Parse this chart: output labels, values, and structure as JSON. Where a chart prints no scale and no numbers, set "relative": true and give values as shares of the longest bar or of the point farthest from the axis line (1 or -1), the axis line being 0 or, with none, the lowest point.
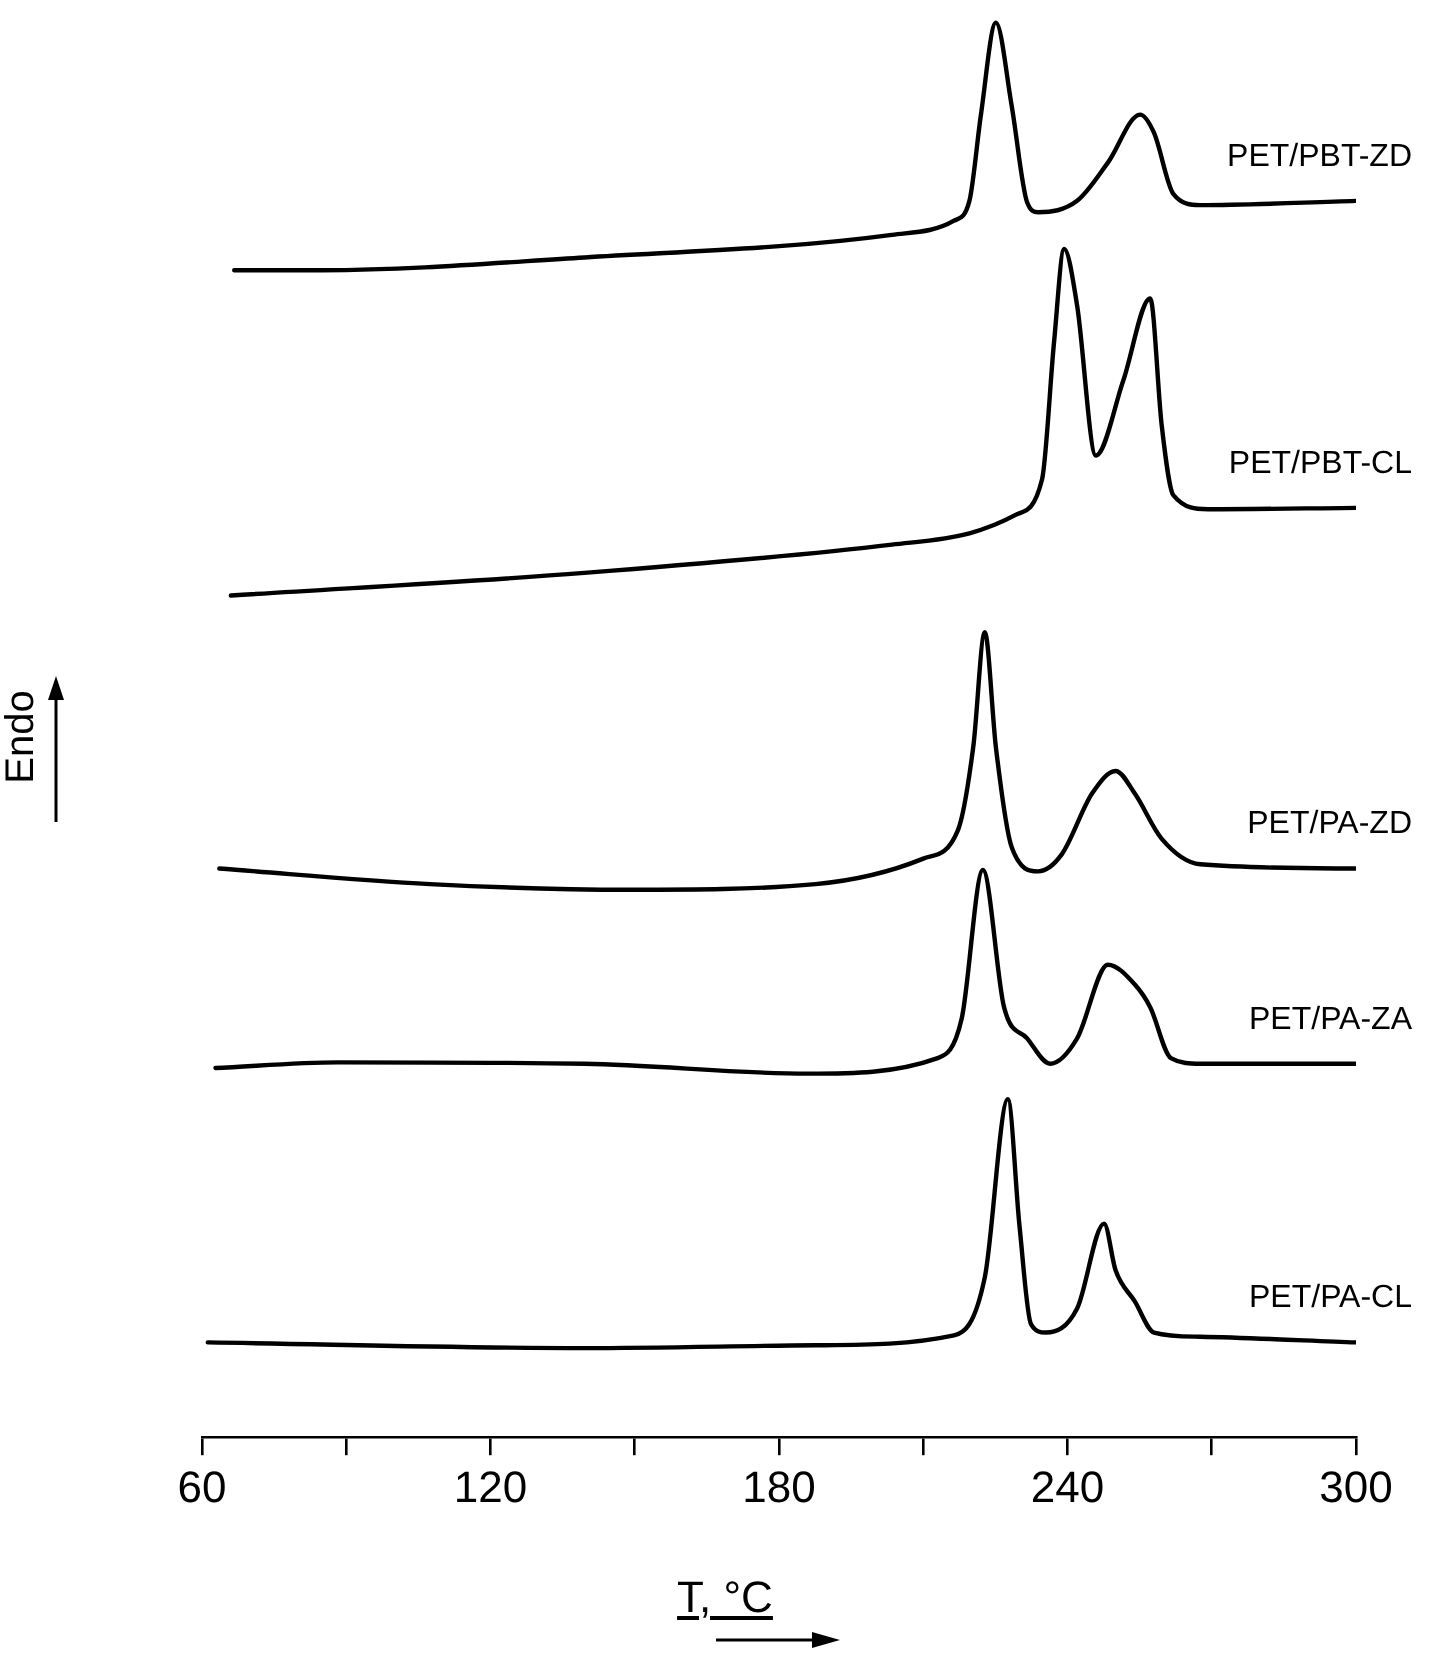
{
  "chart_data": {
    "type": "line",
    "xlabel": "T, °C",
    "ylabel": "Endo",
    "relative": true,
    "marker": "none",
    "line_style": "solid",
    "xlim": [
      60,
      300
    ],
    "xticks": [
      60,
      {
        "value": 90,
        "label": null
      },
      120,
      {
        "value": 150,
        "label": null
      },
      180,
      {
        "value": 210,
        "label": null
      },
      240,
      {
        "value": 270,
        "label": null
      },
      300
    ],
    "series": [
      {
        "name": "PET/PBT-ZD",
        "color": "#000000",
        "x": [
          66.7,
          85,
          139.5,
          203.5,
          216.4,
          219.6,
          222,
          225.1,
          228.4,
          231.6,
          233.9,
          242,
          248.4,
          255.1,
          258,
          262,
          267.6,
          300
        ],
        "values": [
          0.825,
          0.825,
          0.834,
          0.85,
          0.86,
          0.874,
          0.935,
          1.0,
          0.941,
          0.873,
          0.866,
          0.874,
          0.901,
          0.935,
          0.922,
          0.879,
          0.871,
          0.874
        ]
      },
      {
        "name": "PET/PBT-CL",
        "color": "#000000",
        "x": [
          66,
          139.5,
          203.5,
          219.6,
          229.2,
          234.7,
          237.2,
          239.3,
          242,
          245.9,
          251.6,
          257.2,
          259.6,
          262,
          269.2,
          300
        ],
        "values": [
          0.595,
          0.611,
          0.631,
          0.639,
          0.652,
          0.677,
          0.774,
          0.84,
          0.8,
          0.694,
          0.747,
          0.805,
          0.715,
          0.666,
          0.656,
          0.657
        ]
      },
      {
        "name": "PET/PA-ZD",
        "color": "#000000",
        "x": [
          63.6,
          107.4,
          149,
          187.6,
          210,
          217.2,
          220.4,
          222.8,
          225.1,
          228.4,
          233.9,
          238.8,
          245.1,
          250,
          254,
          259.6,
          267.6,
          300
        ],
        "values": [
          0.402,
          0.391,
          0.387,
          0.391,
          0.409,
          0.429,
          0.488,
          0.569,
          0.488,
          0.417,
          0.4,
          0.412,
          0.455,
          0.471,
          0.455,
          0.423,
          0.405,
          0.402
        ]
      },
      {
        "name": "PET/PA-ZA",
        "color": "#000000",
        "x": [
          62.8,
          88.3,
          139.5,
          186,
          213,
          218,
          222.4,
          226.8,
          231.6,
          236.4,
          242,
          248.4,
          254,
          257.2,
          261.5,
          267.6,
          300
        ],
        "values": [
          0.261,
          0.265,
          0.264,
          0.257,
          0.268,
          0.296,
          0.401,
          0.304,
          0.282,
          0.264,
          0.282,
          0.334,
          0.32,
          0.304,
          0.268,
          0.264,
          0.264
        ]
      },
      {
        "name": "PET/PA-CL",
        "color": "#000000",
        "x": [
          61.2,
          139.5,
          187.6,
          216.4,
          222.8,
          227.6,
          230,
          232.4,
          235.5,
          242,
          247.6,
          250,
          254,
          258,
          267.6,
          300
        ],
        "values": [
          0.067,
          0.063,
          0.065,
          0.072,
          0.113,
          0.239,
          0.15,
          0.08,
          0.074,
          0.091,
          0.151,
          0.118,
          0.096,
          0.074,
          0.071,
          0.067
        ]
      }
    ]
  }
}
